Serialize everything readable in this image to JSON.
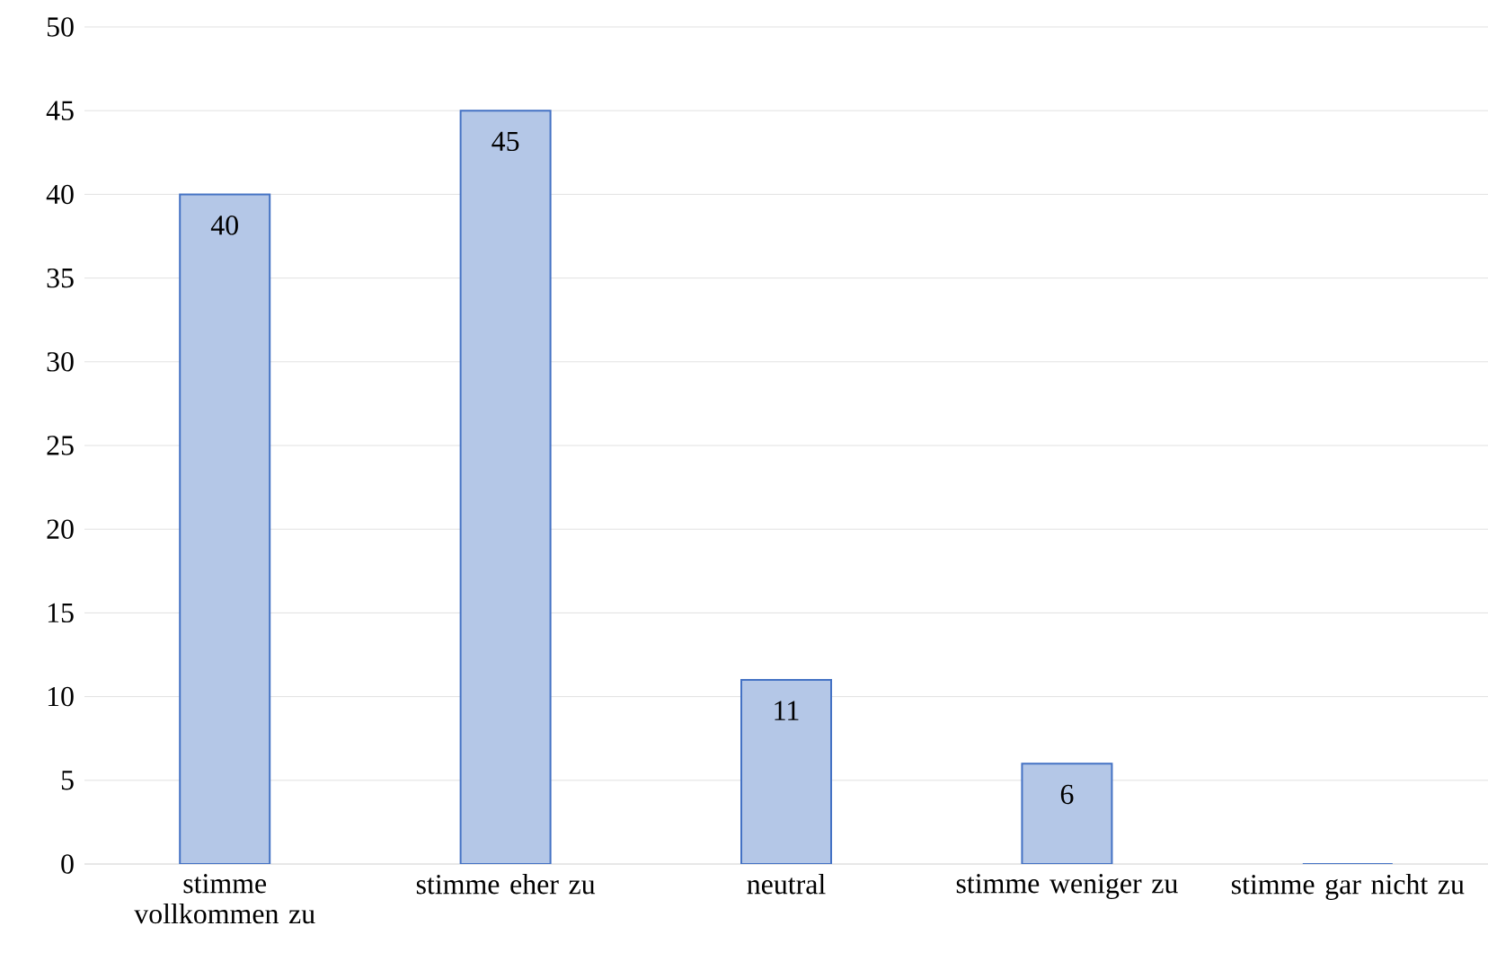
{
  "chart_data": {
    "type": "bar",
    "categories": [
      "stimme vollkommen zu",
      "stimme eher zu",
      "neutral",
      "stimme weniger zu",
      "stimme gar nicht zu"
    ],
    "values": [
      40,
      45,
      11,
      6,
      0
    ],
    "value_labels": [
      "40",
      "45",
      "11",
      "6",
      null
    ],
    "color": "#b4c7e7",
    "ylim": [
      0,
      50
    ],
    "yticks": [
      0,
      5,
      10,
      15,
      20,
      25,
      30,
      35,
      40,
      45,
      50
    ],
    "grid": "y"
  }
}
